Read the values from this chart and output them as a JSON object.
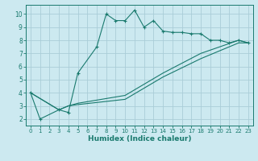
{
  "xlabel": "Humidex (Indice chaleur)",
  "bg_color": "#cce9f0",
  "line_color": "#1a7a6e",
  "grid_color": "#aacdd8",
  "series1": {
    "x": [
      0,
      1,
      3,
      4,
      5,
      7,
      8,
      9,
      10,
      11,
      12,
      13,
      14,
      15,
      16,
      17,
      18,
      19,
      20,
      21,
      22,
      23
    ],
    "y": [
      4.0,
      2.0,
      2.7,
      2.5,
      5.5,
      7.5,
      10.0,
      9.5,
      9.5,
      10.3,
      9.0,
      9.5,
      8.7,
      8.6,
      8.6,
      8.5,
      8.5,
      8.0,
      8.0,
      7.8,
      8.0,
      7.8
    ]
  },
  "series2": {
    "x": [
      0,
      3,
      4,
      5,
      10,
      14,
      18,
      22,
      23
    ],
    "y": [
      4.0,
      2.7,
      3.0,
      3.1,
      3.5,
      5.2,
      6.6,
      7.8,
      7.8
    ]
  },
  "series3": {
    "x": [
      0,
      3,
      4,
      5,
      10,
      14,
      18,
      22,
      23
    ],
    "y": [
      4.0,
      2.7,
      3.0,
      3.2,
      3.8,
      5.5,
      7.0,
      8.0,
      7.8
    ]
  },
  "xlim": [
    -0.5,
    23.5
  ],
  "ylim": [
    1.5,
    10.7
  ],
  "yticks": [
    2,
    3,
    4,
    5,
    6,
    7,
    8,
    9,
    10
  ],
  "xticks": [
    0,
    1,
    2,
    3,
    4,
    5,
    6,
    7,
    8,
    9,
    10,
    11,
    12,
    13,
    14,
    15,
    16,
    17,
    18,
    19,
    20,
    21,
    22,
    23
  ]
}
